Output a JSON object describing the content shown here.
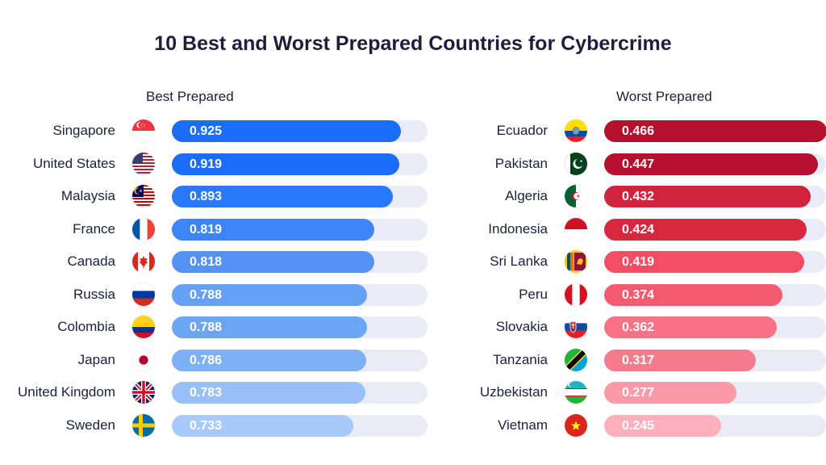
{
  "title": "10 Best and Worst Prepared Countries for Cybercrime",
  "chart_data": [
    {
      "type": "bar",
      "orientation": "horizontal",
      "title": "Best Prepared",
      "categories": [
        "Singapore",
        "United States",
        "Malaysia",
        "France",
        "Canada",
        "Russia",
        "Colombia",
        "Japan",
        "United Kingdom",
        "Sweden"
      ],
      "values": [
        0.925,
        0.919,
        0.893,
        0.819,
        0.818,
        0.788,
        0.788,
        0.786,
        0.783,
        0.733
      ],
      "labels": [
        "0.925",
        "0.919",
        "0.893",
        "0.819",
        "0.818",
        "0.788",
        "0.788",
        "0.786",
        "0.783",
        "0.733"
      ],
      "colors": [
        "#1a6dfb",
        "#1a6dfb",
        "#2a78fb",
        "#3c84f7",
        "#5592f5",
        "#65a0f4",
        "#6da5f5",
        "#7eb0f6",
        "#98c0f8",
        "#a8cafa"
      ],
      "xlim": [
        0,
        1
      ],
      "flags": [
        "singapore",
        "united-states",
        "malaysia",
        "france",
        "canada",
        "russia",
        "colombia",
        "japan",
        "united-kingdom",
        "sweden"
      ]
    },
    {
      "type": "bar",
      "orientation": "horizontal",
      "title": "Worst Prepared",
      "categories": [
        "Ecuador",
        "Pakistan",
        "Algeria",
        "Indonesia",
        "Sri Lanka",
        "Peru",
        "Slovakia",
        "Tanzania",
        "Uzbekistan",
        "Vietnam"
      ],
      "values": [
        0.466,
        0.447,
        0.432,
        0.424,
        0.419,
        0.374,
        0.362,
        0.317,
        0.277,
        0.245
      ],
      "labels": [
        "0.466",
        "0.447",
        "0.432",
        "0.424",
        "0.419",
        "0.374",
        "0.362",
        "0.317",
        "0.277",
        "0.245"
      ],
      "colors": [
        "#b5102c",
        "#b5102c",
        "#d0243d",
        "#d82840",
        "#f24d64",
        "#f45b70",
        "#f77284",
        "#f67b8c",
        "#fa9aa8",
        "#fbb0bb"
      ],
      "xlim": [
        0,
        0.5
      ],
      "flags": [
        "ecuador",
        "pakistan",
        "algeria",
        "indonesia",
        "sri-lanka",
        "peru",
        "slovakia",
        "tanzania",
        "uzbekistan",
        "vietnam"
      ]
    }
  ]
}
